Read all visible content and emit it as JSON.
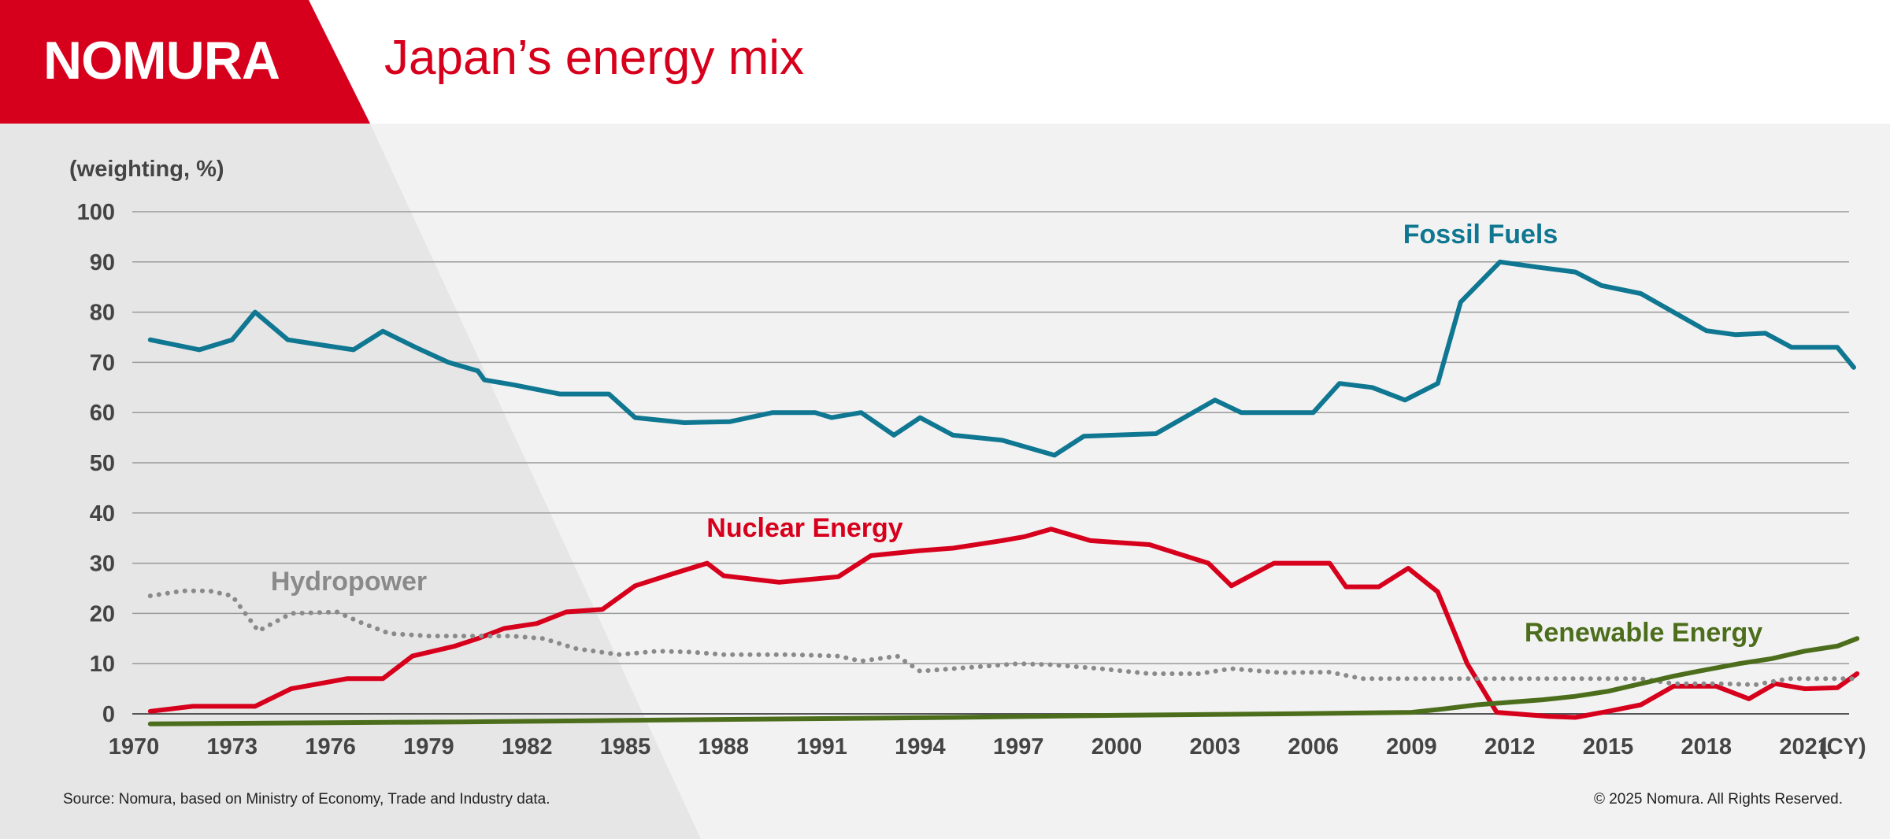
{
  "header": {
    "logo_text": "NOMURA",
    "title": "Japan’s energy mix"
  },
  "colors": {
    "brand_red": "#d7001c",
    "fossil": "#0f7791",
    "nuclear": "#d7001c",
    "hydro": "#8a8a8a",
    "renewable": "#4c6e1c"
  },
  "footer": {
    "source": "Source: Nomura, based on Ministry of Economy, Trade and Industry data.",
    "copyright": "© 2025 Nomura. All Rights Reserved."
  },
  "chart_data": {
    "type": "line",
    "ylabel": "(weighting, %)",
    "xunit": "(CY)",
    "ylim": [
      0,
      100
    ],
    "xlim": [
      1970,
      2023
    ],
    "yticks": [
      0,
      10,
      20,
      30,
      40,
      50,
      60,
      70,
      80,
      90,
      100
    ],
    "xticks": [
      1970,
      1973,
      1976,
      1979,
      1982,
      1985,
      1988,
      1991,
      1994,
      1997,
      2000,
      2003,
      2006,
      2009,
      2012,
      2015,
      2018,
      2021
    ],
    "grid": true,
    "series": [
      {
        "name": "Fossil Fuels",
        "color": "#0f7791",
        "style": "solid",
        "points": [
          [
            1970.5,
            74.5
          ],
          [
            1972,
            72.5
          ],
          [
            1973,
            74.5
          ],
          [
            1973.7,
            80
          ],
          [
            1974.7,
            74.5
          ],
          [
            1975.7,
            73.5
          ],
          [
            1976.7,
            72.5
          ],
          [
            1977.6,
            76.2
          ],
          [
            1978.6,
            73
          ],
          [
            1979.6,
            70
          ],
          [
            1980.5,
            68.3
          ],
          [
            1980.7,
            66.5
          ],
          [
            1981.6,
            65.5
          ],
          [
            1983,
            63.7
          ],
          [
            1984.5,
            63.7
          ],
          [
            1985.3,
            59
          ],
          [
            1986.8,
            58
          ],
          [
            1988.2,
            58.2
          ],
          [
            1989.5,
            60
          ],
          [
            1990.8,
            60
          ],
          [
            1991.3,
            59
          ],
          [
            1992.2,
            60
          ],
          [
            1993.2,
            55.5
          ],
          [
            1994,
            59
          ],
          [
            1995,
            55.5
          ],
          [
            1996.5,
            54.5
          ],
          [
            1998.1,
            51.5
          ],
          [
            1999,
            55.3
          ],
          [
            2001.2,
            55.8
          ],
          [
            2003,
            62.5
          ],
          [
            2003.8,
            60
          ],
          [
            2006,
            60
          ],
          [
            2006.8,
            65.8
          ],
          [
            2007.8,
            65
          ],
          [
            2008.8,
            62.5
          ],
          [
            2009.8,
            65.8
          ],
          [
            2010.5,
            82
          ],
          [
            2011.7,
            90
          ],
          [
            2012.8,
            89
          ],
          [
            2014,
            88
          ],
          [
            2014.8,
            85.3
          ],
          [
            2016,
            83.7
          ],
          [
            2017,
            80
          ],
          [
            2018,
            76.3
          ],
          [
            2018.9,
            75.5
          ],
          [
            2019.8,
            75.8
          ],
          [
            2020.6,
            73
          ],
          [
            2021.2,
            73
          ],
          [
            2022,
            73
          ],
          [
            2022.5,
            69
          ]
        ]
      },
      {
        "name": "Nuclear Energy",
        "color": "#d7001c",
        "style": "solid",
        "points": [
          [
            1970.5,
            0.5
          ],
          [
            1971.8,
            1.5
          ],
          [
            1972.5,
            1.5
          ],
          [
            1973.7,
            1.5
          ],
          [
            1974.8,
            5
          ],
          [
            1976.5,
            7
          ],
          [
            1977.6,
            7
          ],
          [
            1978.5,
            11.5
          ],
          [
            1979.8,
            13.5
          ],
          [
            1980.5,
            15
          ],
          [
            1981.3,
            17
          ],
          [
            1982.3,
            18
          ],
          [
            1983.2,
            20.3
          ],
          [
            1984.3,
            20.8
          ],
          [
            1985.3,
            25.5
          ],
          [
            1986.5,
            28
          ],
          [
            1987.5,
            30
          ],
          [
            1988,
            27.5
          ],
          [
            1989.7,
            26.2
          ],
          [
            1991.5,
            27.3
          ],
          [
            1992.5,
            31.5
          ],
          [
            1994,
            32.5
          ],
          [
            1995,
            33
          ],
          [
            1996.5,
            34.5
          ],
          [
            1997.2,
            35.3
          ],
          [
            1998,
            36.8
          ],
          [
            1999.2,
            34.5
          ],
          [
            2001,
            33.7
          ],
          [
            2002.8,
            30
          ],
          [
            2003.5,
            25.5
          ],
          [
            2004.8,
            30
          ],
          [
            2006.5,
            30
          ],
          [
            2007,
            25.3
          ],
          [
            2008,
            25.3
          ],
          [
            2008.9,
            29
          ],
          [
            2009.8,
            24.3
          ],
          [
            2010.7,
            10
          ],
          [
            2011.6,
            0.3
          ],
          [
            2013.2,
            -0.5
          ],
          [
            2014,
            -0.7
          ],
          [
            2015,
            0.5
          ],
          [
            2016,
            1.8
          ],
          [
            2017,
            5.5
          ],
          [
            2018.3,
            5.5
          ],
          [
            2019.3,
            3
          ],
          [
            2020.1,
            6
          ],
          [
            2021,
            5
          ],
          [
            2022,
            5.2
          ],
          [
            2022.6,
            8
          ]
        ]
      },
      {
        "name": "Hydropower",
        "color": "#8a8a8a",
        "style": "dotted",
        "points": [
          [
            1970.5,
            23.5
          ],
          [
            1971.5,
            24.5
          ],
          [
            1972.3,
            24.5
          ],
          [
            1973,
            23.5
          ],
          [
            1973.8,
            16.5
          ],
          [
            1974.8,
            20
          ],
          [
            1976.2,
            20.3
          ],
          [
            1977,
            18
          ],
          [
            1977.8,
            16
          ],
          [
            1979,
            15.5
          ],
          [
            1980.2,
            15.5
          ],
          [
            1981.5,
            15.5
          ],
          [
            1982.5,
            15
          ],
          [
            1983.5,
            13
          ],
          [
            1984.8,
            11.8
          ],
          [
            1986,
            12.5
          ],
          [
            1987,
            12.3
          ],
          [
            1988,
            11.8
          ],
          [
            1990,
            11.8
          ],
          [
            1991.5,
            11.5
          ],
          [
            1992.2,
            10.5
          ],
          [
            1993.3,
            11.5
          ],
          [
            1994,
            8.5
          ],
          [
            1995,
            9
          ],
          [
            1997,
            10
          ],
          [
            1998,
            9.8
          ],
          [
            1999.5,
            9
          ],
          [
            2001,
            8
          ],
          [
            2002.5,
            8
          ],
          [
            2003.5,
            9
          ],
          [
            2005,
            8.2
          ],
          [
            2006.5,
            8.3
          ],
          [
            2007.5,
            7
          ],
          [
            2009,
            7
          ],
          [
            2010.5,
            7
          ],
          [
            2012,
            7
          ],
          [
            2013.5,
            7
          ],
          [
            2015,
            7
          ],
          [
            2016,
            7
          ],
          [
            2017,
            6
          ],
          [
            2018.5,
            6
          ],
          [
            2019.5,
            5.8
          ],
          [
            2020.5,
            7
          ],
          [
            2021.5,
            7
          ],
          [
            2022.5,
            7
          ]
        ]
      },
      {
        "name": "Renewable Energy",
        "color": "#4c6e1c",
        "style": "solid",
        "points": [
          [
            1970.5,
            -2
          ],
          [
            1975,
            -1.8
          ],
          [
            1980,
            -1.6
          ],
          [
            1985,
            -1.3
          ],
          [
            1990,
            -1
          ],
          [
            1995,
            -0.7
          ],
          [
            2000,
            -0.3
          ],
          [
            2005,
            0
          ],
          [
            2009,
            0.3
          ],
          [
            2010,
            1
          ],
          [
            2011,
            1.8
          ],
          [
            2012,
            2.3
          ],
          [
            2013,
            2.8
          ],
          [
            2014,
            3.5
          ],
          [
            2015,
            4.5
          ],
          [
            2016,
            6
          ],
          [
            2017,
            7.5
          ],
          [
            2018,
            8.8
          ],
          [
            2019,
            10
          ],
          [
            2020,
            11
          ],
          [
            2021,
            12.5
          ],
          [
            2022,
            13.5
          ],
          [
            2022.6,
            15
          ]
        ]
      }
    ],
    "labels": [
      {
        "text": "Fossil Fuels",
        "series": "Fossil Fuels"
      },
      {
        "text": "Nuclear Energy",
        "series": "Nuclear Energy"
      },
      {
        "text": "Hydropower",
        "series": "Hydropower"
      },
      {
        "text": "Renewable Energy",
        "series": "Renewable Energy"
      }
    ]
  }
}
